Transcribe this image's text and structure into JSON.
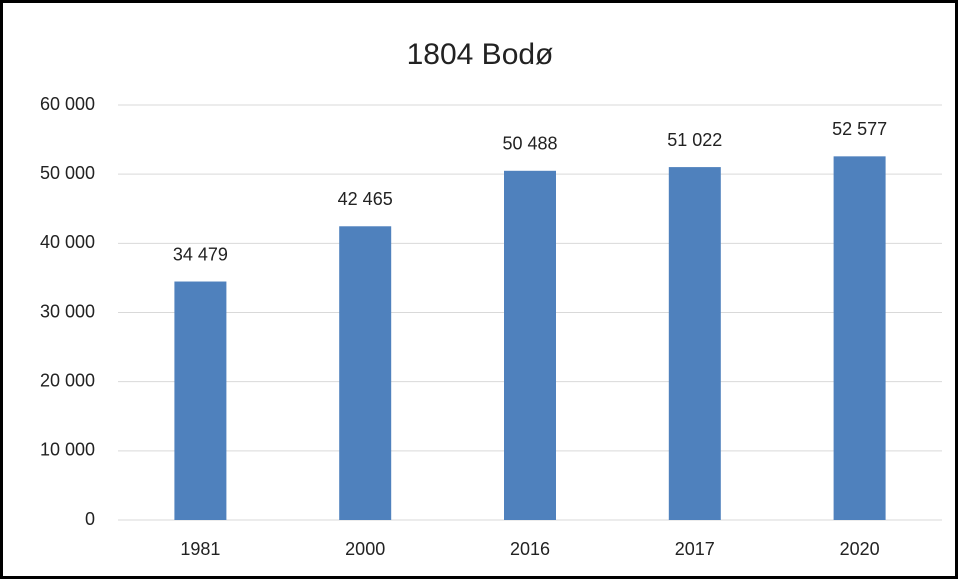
{
  "chart_data": {
    "type": "bar",
    "title": "1804 Bodø",
    "categories": [
      "1981",
      "2000",
      "2016",
      "2017",
      "2020"
    ],
    "values": [
      34479,
      42465,
      50488,
      51022,
      52577
    ],
    "value_labels": [
      "34 479",
      "42 465",
      "50 488",
      "51 022",
      "52 577"
    ],
    "color": "#4f81bd",
    "ylim": [
      0,
      60000
    ],
    "yticks": [
      0,
      {
        "value": 10000,
        "label": "10 000"
      },
      {
        "value": 20000,
        "label": "20 000"
      },
      {
        "value": 30000,
        "label": "30 000"
      },
      {
        "value": 40000,
        "label": "40 000"
      },
      {
        "value": 50000,
        "label": "50 000"
      },
      {
        "value": 60000,
        "label": "60 000"
      }
    ],
    "grid": true
  }
}
